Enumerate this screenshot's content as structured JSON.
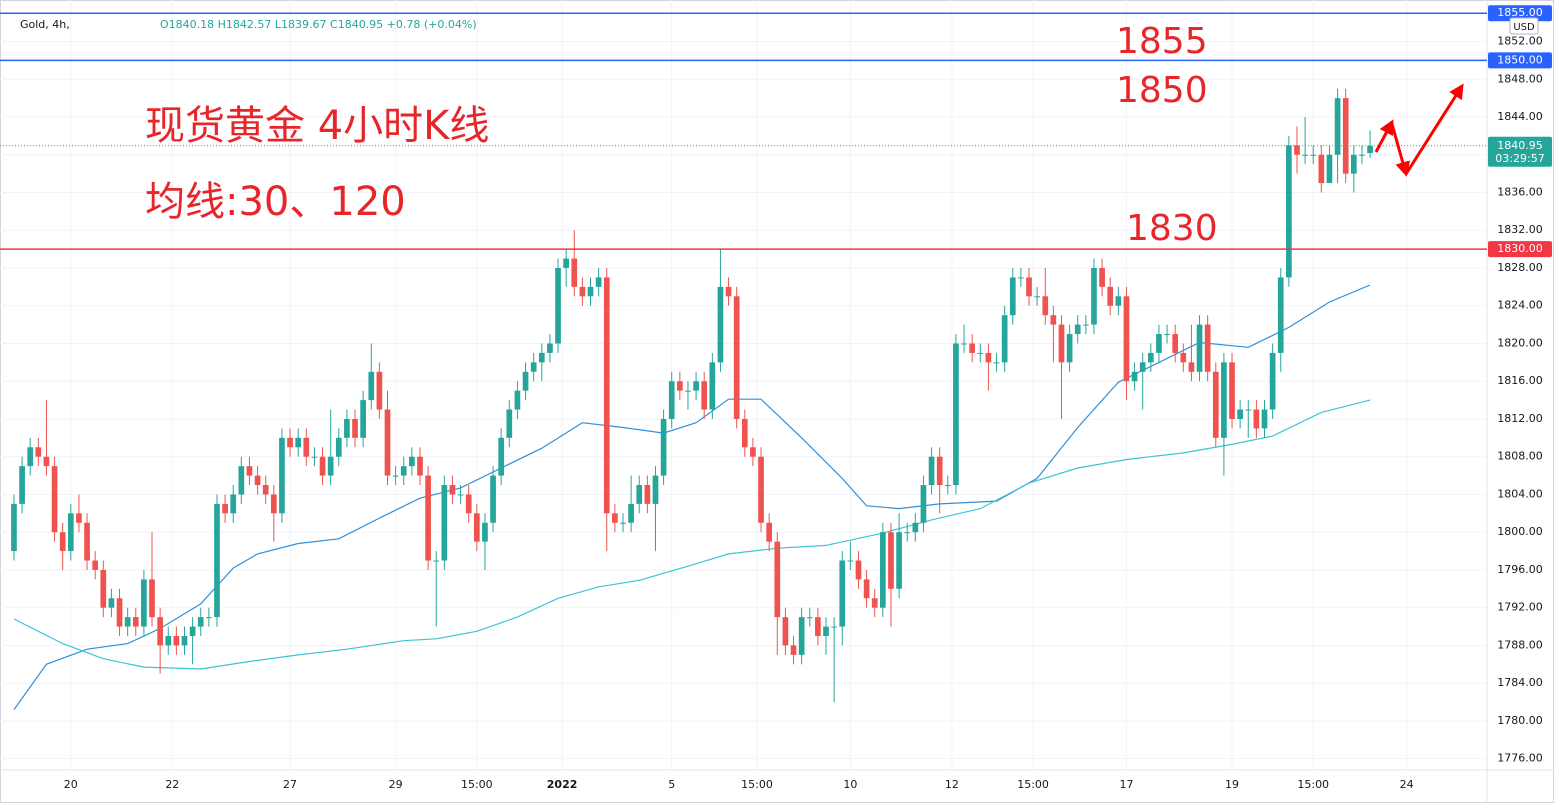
{
  "chart_data": {
    "type": "candlestick",
    "header": {
      "symbol": "Gold, 4h,",
      "ohlc": "O1840.18 H1842.57 L1839.67 C1840.95 +0.78 (+0.04%)"
    },
    "currency": "USD",
    "annotations": [
      "现货黄金 4小时K线",
      "均线:30、120",
      "1855",
      "1850",
      "1830"
    ],
    "up_color": "#26a69a",
    "down_color": "#ef5350",
    "open": [
      1798,
      1803,
      1807,
      1809,
      1808,
      1807,
      1800,
      1798,
      1802,
      1801,
      1797,
      1796,
      1792,
      1793,
      1790,
      1791,
      1790,
      1795,
      1791,
      1788,
      1789,
      1788,
      1789,
      1790,
      1791,
      1791,
      1803,
      1802,
      1804,
      1807,
      1806,
      1805,
      1804,
      1802,
      1810,
      1809,
      1810,
      1808,
      1808,
      1806,
      1808,
      1810,
      1812,
      1810,
      1814,
      1817,
      1813,
      1806,
      1806,
      1807,
      1808,
      1806,
      1797,
      1797,
      1805,
      1804,
      1804,
      1802,
      1799,
      1801,
      1806,
      1810,
      1813,
      1815,
      1817,
      1818,
      1819,
      1820,
      1828,
      1829,
      1826,
      1825,
      1826,
      1827,
      1802,
      1801,
      1801,
      1803,
      1805,
      1803,
      1806,
      1812,
      1816,
      1815,
      1815,
      1816,
      1813,
      1818,
      1826,
      1825,
      1812,
      1809,
      1808,
      1801,
      1799,
      1791,
      1788,
      1787,
      1791,
      1791,
      1789,
      1790,
      1790,
      1797,
      1797,
      1795,
      1793,
      1792,
      1800,
      1794,
      1800,
      1800,
      1801,
      1805,
      1808,
      1805,
      1805,
      1820,
      1820,
      1819,
      1819,
      1818,
      1818,
      1823,
      1827,
      1827,
      1825,
      1825,
      1823,
      1822,
      1818,
      1821,
      1822,
      1822,
      1828,
      1826,
      1824,
      1825,
      1816,
      1817,
      1818,
      1819,
      1821,
      1821,
      1819,
      1818,
      1817,
      1822,
      1817,
      1810,
      1818,
      1812,
      1813,
      1813,
      1811,
      1813,
      1819,
      1827,
      1841,
      1840,
      1840,
      1840,
      1837,
      1840,
      1846,
      1838,
      1840,
      1840.18
    ],
    "high": [
      1804,
      1808,
      1810,
      1810,
      1814,
      1808,
      1801,
      1803,
      1804,
      1802,
      1798,
      1797,
      1794,
      1794,
      1792,
      1792,
      1796,
      1800,
      1792,
      1790,
      1790,
      1790,
      1791,
      1792,
      1792,
      1804,
      1804,
      1805,
      1808,
      1808,
      1807,
      1806,
      1805,
      1811,
      1811,
      1811,
      1811,
      1809,
      1809,
      1813,
      1811,
      1813,
      1813,
      1815,
      1820,
      1818,
      1815,
      1807,
      1808,
      1809,
      1809,
      1807,
      1798,
      1806,
      1806,
      1805,
      1805,
      1803,
      1802,
      1807,
      1811,
      1814,
      1816,
      1818,
      1819,
      1820,
      1821,
      1829,
      1830,
      1832,
      1827,
      1827,
      1828,
      1828,
      1803,
      1802,
      1806,
      1806,
      1806,
      1807,
      1813,
      1817,
      1817,
      1816,
      1817,
      1817,
      1819,
      1830,
      1827,
      1826,
      1813,
      1810,
      1809,
      1802,
      1800,
      1792,
      1789,
      1792,
      1792,
      1792,
      1791,
      1791,
      1798,
      1799,
      1798,
      1796,
      1794,
      1801,
      1801,
      1802,
      1801,
      1802,
      1806,
      1809,
      1809,
      1806,
      1821,
      1822,
      1821,
      1820,
      1820,
      1819,
      1824,
      1828,
      1828,
      1828,
      1826,
      1828,
      1824,
      1823,
      1822,
      1823,
      1823,
      1829,
      1829,
      1827,
      1826,
      1826,
      1818,
      1819,
      1820,
      1822,
      1822,
      1822,
      1820,
      1822,
      1823,
      1823,
      1818,
      1819,
      1819,
      1814,
      1814,
      1814,
      1814,
      1820,
      1828,
      1842,
      1843,
      1844,
      1841,
      1841,
      1841,
      1847,
      1847,
      1841,
      1841,
      1842.57
    ],
    "low": [
      1797,
      1802,
      1806,
      1807,
      1806,
      1799,
      1796,
      1797,
      1800,
      1796,
      1795,
      1791,
      1791,
      1789,
      1789,
      1789,
      1789,
      1790,
      1785,
      1787,
      1787,
      1787,
      1786,
      1789,
      1790,
      1790,
      1801,
      1801,
      1803,
      1805,
      1804,
      1803,
      1799,
      1801,
      1808,
      1808,
      1807,
      1807,
      1805,
      1805,
      1807,
      1809,
      1809,
      1809,
      1813,
      1812,
      1805,
      1805,
      1805,
      1806,
      1805,
      1796,
      1790,
      1796,
      1803,
      1803,
      1801,
      1798,
      1796,
      1800,
      1805,
      1809,
      1812,
      1814,
      1816,
      1816,
      1818,
      1819,
      1826,
      1825,
      1824,
      1824,
      1825,
      1798,
      1800,
      1800,
      1800,
      1802,
      1802,
      1798,
      1805,
      1811,
      1814,
      1813,
      1814,
      1812,
      1812,
      1817,
      1824,
      1811,
      1808,
      1807,
      1800,
      1798,
      1787,
      1787,
      1786,
      1786,
      1790,
      1788,
      1787,
      1782,
      1788,
      1796,
      1794,
      1792,
      1791,
      1791,
      1790,
      1793,
      1799,
      1799,
      1800,
      1804,
      1802,
      1804,
      1804,
      1819,
      1818,
      1818,
      1815,
      1817,
      1817,
      1822,
      1826,
      1824,
      1824,
      1822,
      1818,
      1812,
      1817,
      1820,
      1821,
      1821,
      1825,
      1823,
      1823,
      1814,
      1815,
      1813,
      1817,
      1818,
      1820,
      1818,
      1817,
      1816,
      1816,
      1816,
      1809,
      1806,
      1811,
      1811,
      1810,
      1810,
      1810,
      1812,
      1817,
      1826,
      1838,
      1839,
      1839,
      1836,
      1837,
      1837,
      1837,
      1836,
      1839,
      1839.67
    ],
    "close": [
      1803,
      1807,
      1809,
      1808,
      1807,
      1800,
      1798,
      1802,
      1801,
      1797,
      1796,
      1792,
      1793,
      1790,
      1791,
      1790,
      1795,
      1791,
      1788,
      1789,
      1788,
      1789,
      1790,
      1791,
      1791,
      1803,
      1802,
      1804,
      1807,
      1806,
      1805,
      1804,
      1802,
      1810,
      1809,
      1810,
      1808,
      1808,
      1806,
      1808,
      1810,
      1812,
      1810,
      1814,
      1817,
      1813,
      1806,
      1806,
      1807,
      1808,
      1806,
      1797,
      1797,
      1805,
      1804,
      1804,
      1802,
      1799,
      1801,
      1806,
      1810,
      1813,
      1815,
      1817,
      1818,
      1819,
      1820,
      1828,
      1829,
      1826,
      1825,
      1826,
      1827,
      1802,
      1801,
      1801,
      1803,
      1805,
      1803,
      1806,
      1812,
      1816,
      1815,
      1815,
      1816,
      1813,
      1818,
      1826,
      1825,
      1812,
      1809,
      1808,
      1801,
      1799,
      1791,
      1788,
      1787,
      1791,
      1791,
      1789,
      1790,
      1790,
      1797,
      1797,
      1795,
      1793,
      1792,
      1800,
      1794,
      1800,
      1800,
      1801,
      1805,
      1808,
      1805,
      1805,
      1820,
      1820,
      1819,
      1819,
      1818,
      1818,
      1823,
      1827,
      1827,
      1825,
      1825,
      1823,
      1822,
      1818,
      1821,
      1822,
      1822,
      1828,
      1826,
      1824,
      1825,
      1816,
      1817,
      1818,
      1819,
      1821,
      1821,
      1819,
      1818,
      1817,
      1822,
      1817,
      1810,
      1818,
      1812,
      1813,
      1813,
      1811,
      1813,
      1819,
      1827,
      1841,
      1840,
      1840,
      1840,
      1837,
      1840,
      1846,
      1838,
      1840,
      1840,
      1840.95
    ],
    "last_price_timer": "03:29:57",
    "moving_averages": [
      {
        "color": "#2f8fdc",
        "x": [
          0,
          4,
          9,
          14,
          18,
          23,
          27,
          30,
          35,
          40,
          45,
          50,
          55,
          60,
          65,
          70,
          75,
          80,
          84,
          88,
          92,
          97,
          102,
          105,
          109,
          114,
          121,
          126,
          131,
          136,
          141,
          146,
          152,
          157,
          162,
          167
        ],
        "values": [
          1781.2,
          1786,
          1787.6,
          1788.2,
          1789.8,
          1792.4,
          1796.2,
          1797.7,
          1798.8,
          1799.3,
          1801.5,
          1803.6,
          1804.7,
          1806.8,
          1808.9,
          1811.6,
          1811.1,
          1810.5,
          1811.6,
          1814.1,
          1814.1,
          1810,
          1805.7,
          1802.8,
          1802.5,
          1803,
          1803.3,
          1805.7,
          1811.1,
          1815.9,
          1818,
          1820.1,
          1819.6,
          1821.7,
          1824.4,
          1826.2
        ]
      },
      {
        "color": "#3cc4d8",
        "x": [
          0,
          6,
          11,
          16,
          23,
          29,
          35,
          41,
          48,
          52,
          57,
          62,
          67,
          72,
          77,
          83,
          88,
          94,
          100,
          107,
          113,
          119,
          125,
          131,
          137,
          144,
          150,
          155,
          161,
          167
        ],
        "values": [
          1790.8,
          1788.2,
          1786.6,
          1785.7,
          1785.5,
          1786.3,
          1787,
          1787.6,
          1788.5,
          1788.7,
          1789.5,
          1791,
          1793,
          1794.2,
          1794.9,
          1796.4,
          1797.7,
          1798.3,
          1798.6,
          1799.9,
          1801.3,
          1802.5,
          1805.2,
          1806.8,
          1807.7,
          1808.4,
          1809.3,
          1810.2,
          1812.7,
          1814
        ]
      }
    ],
    "levels": [
      {
        "value": 1855,
        "label": "1855.00",
        "color": "#2962ff"
      },
      {
        "value": 1850,
        "label": "1850.00",
        "color": "#2962ff"
      },
      {
        "value": 1830,
        "label": "1830.00",
        "color": "#f23645"
      }
    ],
    "ylim": [
      1774.8,
      1856.4
    ],
    "yticks": [
      {
        "value": 1776,
        "label": "1776.00"
      },
      {
        "value": 1780,
        "label": "1780.00"
      },
      {
        "value": 1784,
        "label": "1784.00"
      },
      {
        "value": 1788,
        "label": "1788.00"
      },
      {
        "value": 1792,
        "label": "1792.00"
      },
      {
        "value": 1796,
        "label": "1796.00"
      },
      {
        "value": 1800,
        "label": "1800.00"
      },
      {
        "value": 1804,
        "label": "1804.00"
      },
      {
        "value": 1808,
        "label": "1808.00"
      },
      {
        "value": 1812,
        "label": "1812.00"
      },
      {
        "value": 1816,
        "label": "1816.00"
      },
      {
        "value": 1820,
        "label": "1820.00"
      },
      {
        "value": 1824,
        "label": "1824.00"
      },
      {
        "value": 1828,
        "label": "1828.00"
      },
      {
        "value": 1832,
        "label": "1832.00"
      },
      {
        "value": 1836,
        "label": "1836.00"
      },
      {
        "value": 1840,
        "label": "1840.00"
      },
      {
        "value": 1844,
        "label": "1844.00"
      },
      {
        "value": 1848,
        "label": "1848.00"
      },
      {
        "value": 1852,
        "label": "1852.00"
      }
    ],
    "xlim": [
      -1.72,
      181.4
    ],
    "xticks": [
      {
        "value": 7,
        "label": "20"
      },
      {
        "value": 19.5,
        "label": "22"
      },
      {
        "value": 34,
        "label": "27"
      },
      {
        "value": 47,
        "label": "29"
      },
      {
        "value": 57,
        "label": "15:00"
      },
      {
        "value": 67.5,
        "label": "2022"
      },
      {
        "value": 81,
        "label": "5"
      },
      {
        "value": 91.5,
        "label": "15:00"
      },
      {
        "value": 103,
        "label": "10"
      },
      {
        "value": 115.5,
        "label": "12"
      },
      {
        "value": 125.5,
        "label": "15:00"
      },
      {
        "value": 137,
        "label": "17"
      },
      {
        "value": 150,
        "label": "19"
      },
      {
        "value": 160,
        "label": "15:00"
      },
      {
        "value": 171.5,
        "label": "24"
      }
    ]
  }
}
